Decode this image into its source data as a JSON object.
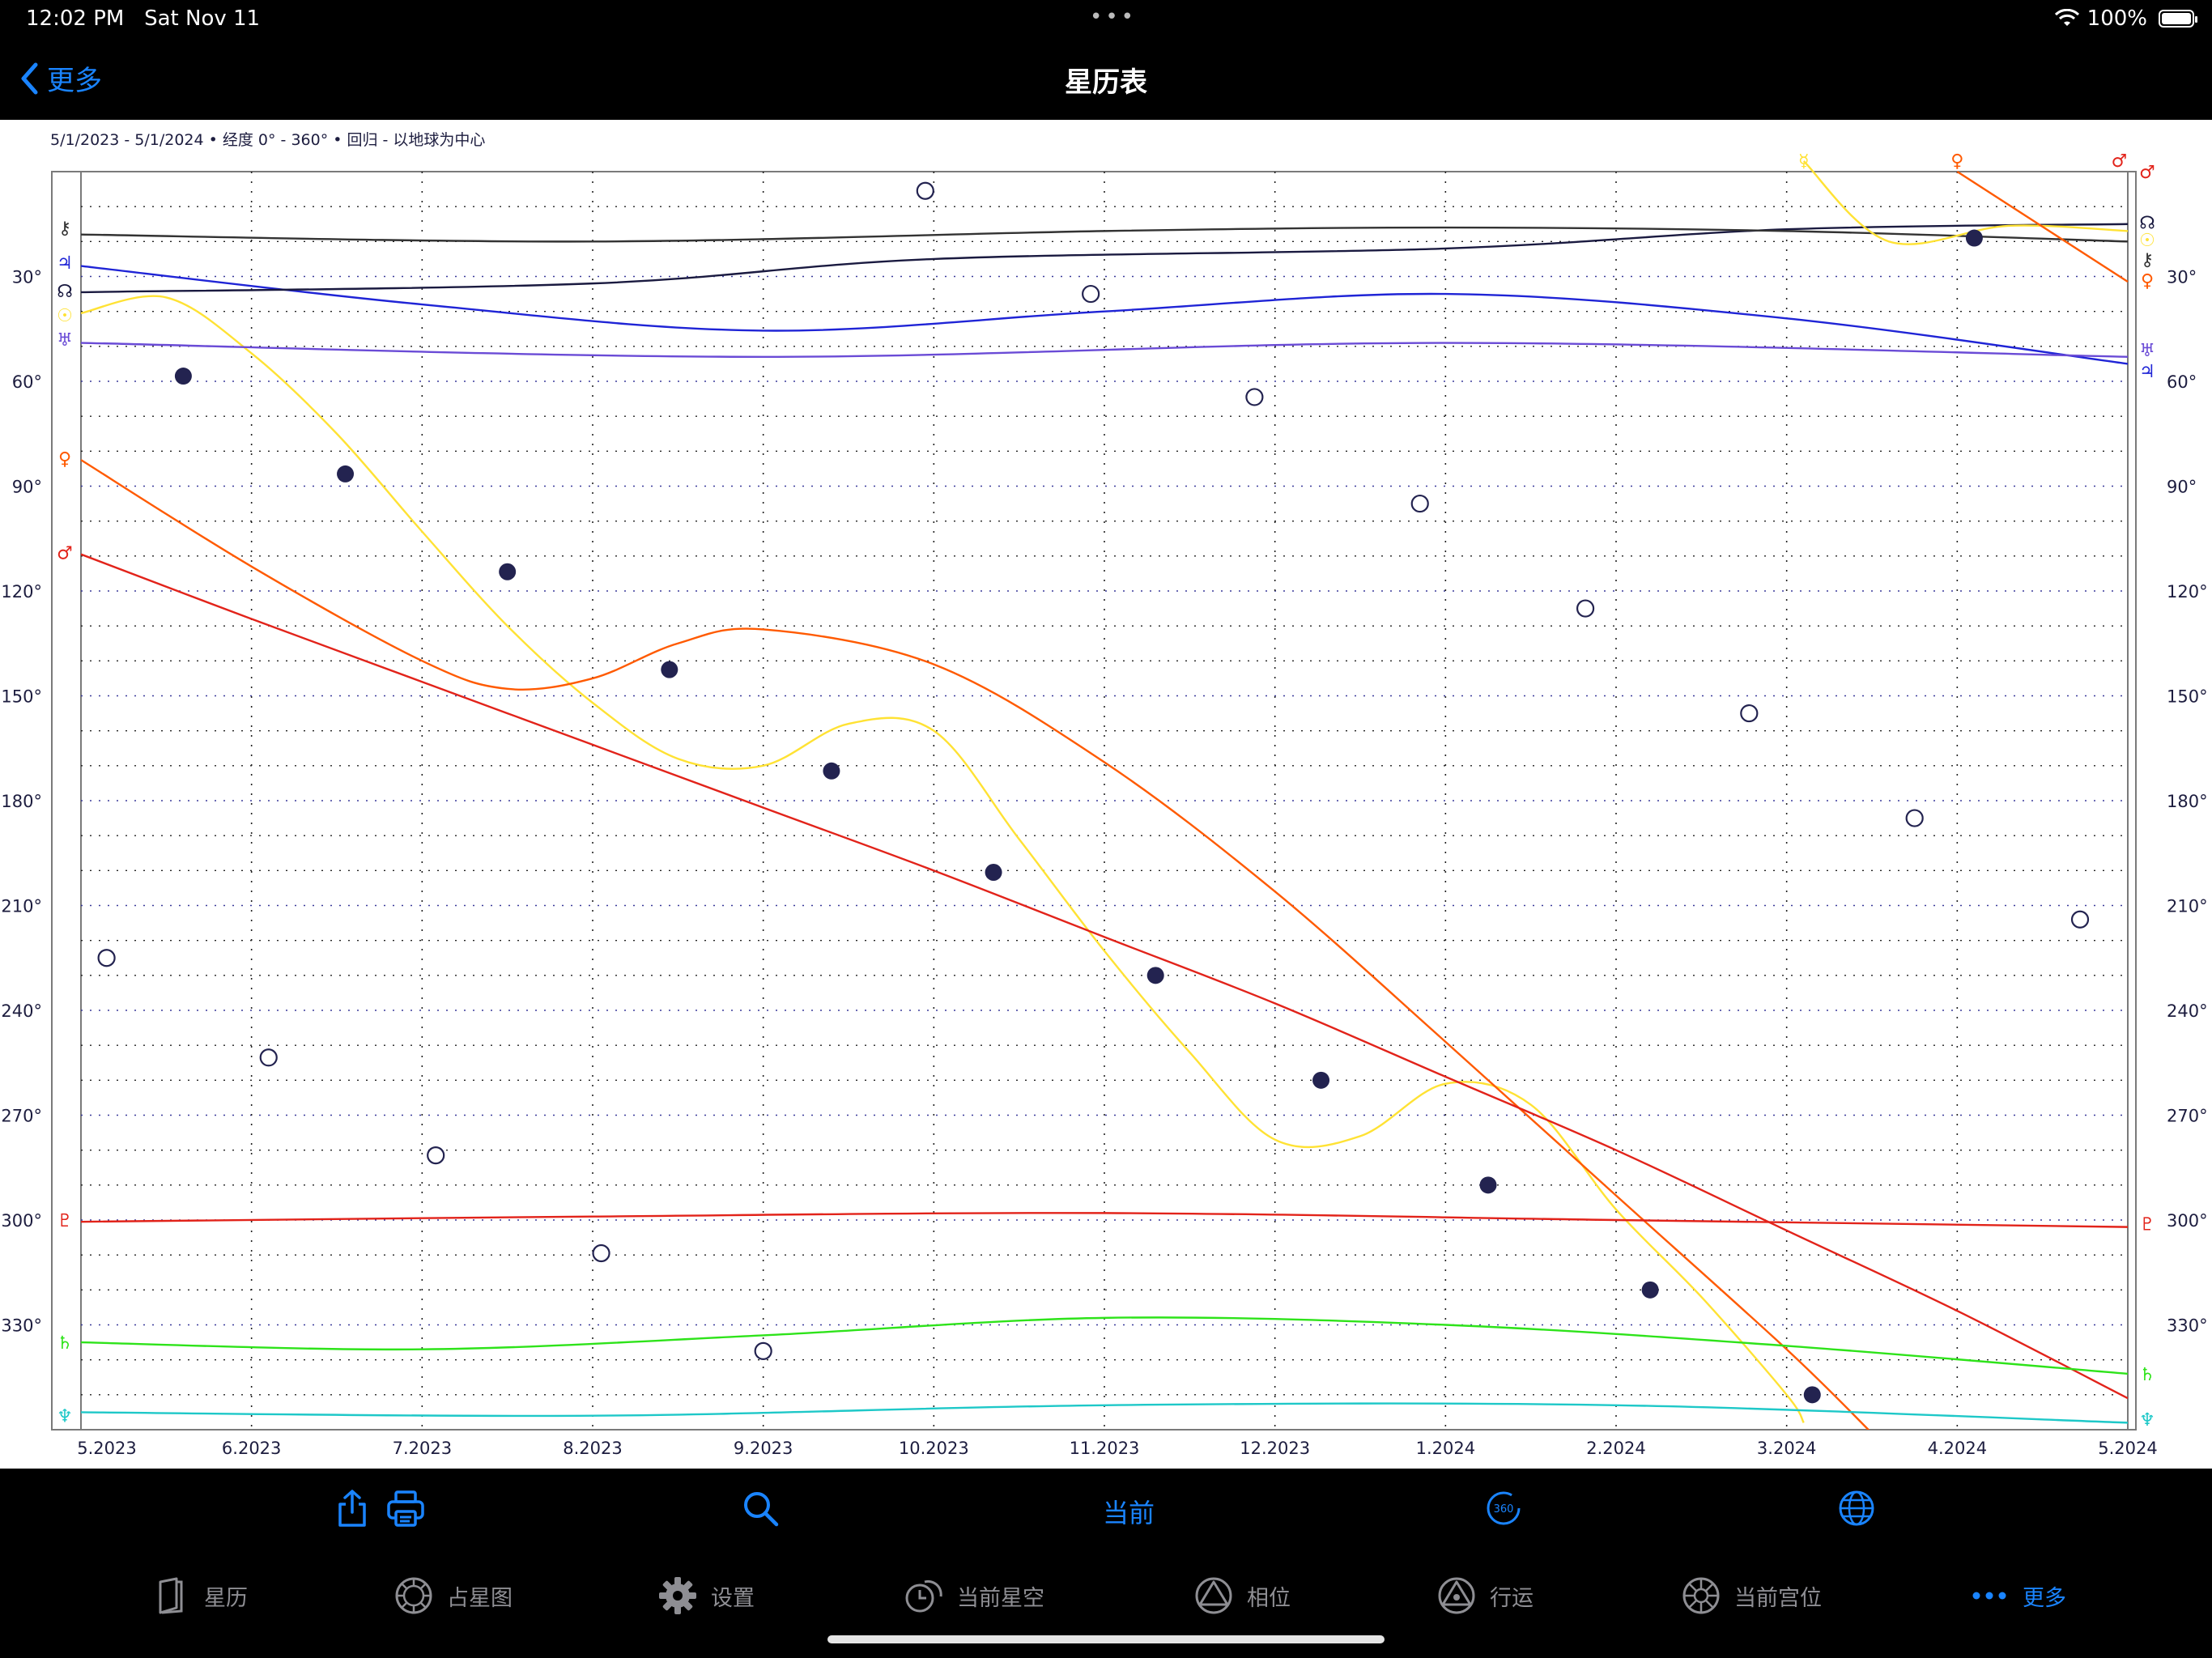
{
  "status_bar": {
    "time": "12:02 PM",
    "date": "Sat Nov 11",
    "battery": "100%"
  },
  "nav": {
    "back_label": "更多",
    "title": "星历表"
  },
  "chart_data": {
    "type": "line",
    "subtitle": "5/1/2023 - 5/1/2024 • 经度 0° - 360° • 回归 - 以地球为中心",
    "y_ticks": [
      "30°",
      "60°",
      "90°",
      "120°",
      "150°",
      "180°",
      "210°",
      "240°",
      "270°",
      "300°",
      "330°"
    ],
    "x_ticks": [
      "5.2023",
      "6.2023",
      "7.2023",
      "8.2023",
      "9.2023",
      "10.2023",
      "11.2023",
      "12.2023",
      "1.2024",
      "2.2024",
      "3.2024",
      "4.2024",
      "5.2024"
    ],
    "x_range_months": [
      0,
      12
    ],
    "y_range_degrees": [
      0,
      360
    ],
    "colors": {
      "sun": "#ffe234",
      "venus": "#ff5a00",
      "mars": "#e2231a",
      "pluto": "#e2231a",
      "saturn": "#2ee31a",
      "neptune": "#1ec8c8",
      "jupiter": "#1f24d6",
      "uranus": "#6a4bd6",
      "node": "#1a1a40",
      "chiron": "#333333",
      "moon": "#232350",
      "grid": "#000000"
    },
    "series": [
      {
        "symbol": "☉",
        "color_key": "sun",
        "points": [
          [
            0,
            40.5
          ],
          [
            0.5,
            36
          ],
          [
            1,
            52
          ],
          [
            1.5,
            75
          ],
          [
            2,
            103
          ],
          [
            2.5,
            130
          ],
          [
            3,
            152
          ],
          [
            3.5,
            168
          ],
          [
            4,
            170
          ],
          [
            4.5,
            158
          ],
          [
            5,
            160
          ],
          [
            5.5,
            191
          ],
          [
            6,
            223
          ],
          [
            6.5,
            252
          ],
          [
            7,
            277
          ],
          [
            7.5,
            276
          ],
          [
            8,
            261
          ],
          [
            8.5,
            267
          ],
          [
            9,
            297
          ],
          [
            9.5,
            322
          ],
          [
            10,
            350
          ],
          [
            10.1,
            358
          ]
        ]
      },
      {
        "symbol": "♀",
        "color_key": "venus",
        "points": [
          [
            0,
            82.5
          ],
          [
            1,
            113
          ],
          [
            2,
            140
          ],
          [
            2.5,
            148
          ],
          [
            3,
            145
          ],
          [
            3.5,
            135
          ],
          [
            4,
            131
          ],
          [
            5,
            141
          ],
          [
            6,
            169
          ],
          [
            7,
            206
          ],
          [
            8,
            249
          ],
          [
            9,
            293
          ],
          [
            10,
            337
          ],
          [
            10.5,
            361
          ]
        ]
      },
      {
        "symbol": "♂",
        "color_key": "mars",
        "points": [
          [
            0,
            109.5
          ],
          [
            1,
            128
          ],
          [
            2,
            146
          ],
          [
            3,
            164
          ],
          [
            4,
            182
          ],
          [
            5,
            200
          ],
          [
            6,
            219
          ],
          [
            7,
            238
          ],
          [
            8,
            259
          ],
          [
            9,
            280
          ],
          [
            10,
            303
          ],
          [
            11,
            326
          ],
          [
            12,
            351
          ]
        ]
      },
      {
        "symbol": "♇",
        "color_key": "pluto",
        "points": [
          [
            0,
            300.5
          ],
          [
            3,
            299
          ],
          [
            6,
            298
          ],
          [
            9,
            300
          ],
          [
            12,
            302
          ]
        ]
      },
      {
        "symbol": "♄",
        "color_key": "saturn",
        "points": [
          [
            0,
            335
          ],
          [
            2,
            337
          ],
          [
            4,
            333
          ],
          [
            6,
            328
          ],
          [
            8,
            330
          ],
          [
            10,
            336
          ],
          [
            12,
            344
          ]
        ]
      },
      {
        "symbol": "♆",
        "color_key": "neptune",
        "points": [
          [
            0,
            355
          ],
          [
            3,
            356
          ],
          [
            6,
            353
          ],
          [
            9,
            353
          ],
          [
            12,
            358
          ]
        ]
      },
      {
        "symbol": "♃",
        "color_key": "jupiter",
        "points": [
          [
            0,
            27
          ],
          [
            2,
            38
          ],
          [
            4,
            45.5
          ],
          [
            6,
            40
          ],
          [
            8,
            35
          ],
          [
            10,
            42
          ],
          [
            12,
            55
          ]
        ]
      },
      {
        "symbol": "♅",
        "color_key": "uranus",
        "points": [
          [
            0,
            49
          ],
          [
            4,
            53
          ],
          [
            8,
            49
          ],
          [
            12,
            53
          ]
        ]
      },
      {
        "symbol": "☊",
        "color_key": "node",
        "points": [
          [
            0,
            34.5
          ],
          [
            3,
            32
          ],
          [
            5,
            25
          ],
          [
            8,
            22
          ],
          [
            10,
            16.5
          ],
          [
            12,
            15
          ]
        ]
      },
      {
        "symbol": "⚷",
        "color_key": "chiron",
        "points": [
          [
            0,
            18
          ],
          [
            3,
            20
          ],
          [
            6,
            17
          ],
          [
            8,
            16
          ],
          [
            10,
            17
          ],
          [
            12,
            20
          ]
        ]
      }
    ],
    "top_entries": [
      {
        "symbol": "☿",
        "color_key": "sun",
        "points": [
          [
            10.1,
            -3
          ],
          [
            10.6,
            20
          ],
          [
            11.3,
            15.5
          ],
          [
            12,
            17
          ]
        ]
      },
      {
        "symbol": "♀",
        "color_key": "venus",
        "points": [
          [
            11,
            0
          ],
          [
            12,
            31.5
          ]
        ]
      }
    ],
    "moon_new": [
      [
        0.6,
        58.5
      ],
      [
        1.55,
        86.5
      ],
      [
        2.5,
        114.5
      ],
      [
        3.45,
        142.5
      ],
      [
        4.4,
        171.5
      ],
      [
        5.35,
        200.5
      ],
      [
        6.3,
        230
      ],
      [
        7.27,
        260
      ],
      [
        8.25,
        290
      ],
      [
        9.2,
        320
      ],
      [
        10.15,
        350
      ],
      [
        11.1,
        19
      ]
    ],
    "moon_full": [
      [
        0.15,
        225
      ],
      [
        1.1,
        253.5
      ],
      [
        2.08,
        281.5
      ],
      [
        3.05,
        309.5
      ],
      [
        4.0,
        337.5
      ],
      [
        4.95,
        5.5
      ],
      [
        5.92,
        35
      ],
      [
        6.88,
        64.5
      ],
      [
        7.85,
        95
      ],
      [
        8.82,
        125
      ],
      [
        9.78,
        155
      ],
      [
        10.75,
        185
      ],
      [
        11.72,
        214
      ]
    ],
    "left_markers": [
      {
        "symbol": "⚷",
        "y": 16,
        "color_key": "chiron"
      },
      {
        "symbol": "♃",
        "y": 26,
        "color_key": "jupiter"
      },
      {
        "symbol": "☊",
        "y": 34,
        "color_key": "node"
      },
      {
        "symbol": "☉",
        "y": 41,
        "color_key": "sun"
      },
      {
        "symbol": "♅",
        "y": 48,
        "color_key": "uranus"
      },
      {
        "symbol": "♀",
        "y": 82,
        "color_key": "venus"
      },
      {
        "symbol": "♂",
        "y": 109,
        "color_key": "mars"
      },
      {
        "symbol": "♇",
        "y": 300,
        "color_key": "pluto"
      },
      {
        "symbol": "♄",
        "y": 335,
        "color_key": "saturn"
      },
      {
        "symbol": "♆",
        "y": 356,
        "color_key": "neptune"
      }
    ],
    "right_markers": [
      {
        "symbol": "♂",
        "y": 0,
        "color_key": "mars"
      },
      {
        "symbol": "☊",
        "y": 14.5,
        "color_key": "node"
      },
      {
        "symbol": "☉",
        "y": 19.5,
        "color_key": "sun"
      },
      {
        "symbol": "⚷",
        "y": 25,
        "color_key": "chiron"
      },
      {
        "symbol": "♀",
        "y": 31,
        "color_key": "venus"
      },
      {
        "symbol": "♅",
        "y": 51,
        "color_key": "uranus"
      },
      {
        "symbol": "♃",
        "y": 57,
        "color_key": "jupiter"
      },
      {
        "symbol": "♇",
        "y": 301,
        "color_key": "pluto"
      },
      {
        "symbol": "♄",
        "y": 344,
        "color_key": "saturn"
      },
      {
        "symbol": "♆",
        "y": 357,
        "color_key": "neptune"
      }
    ],
    "top_markers": [
      {
        "symbol": "☿",
        "x": 10.1,
        "color_key": "sun"
      },
      {
        "symbol": "♀",
        "x": 11.0,
        "color_key": "venus"
      },
      {
        "symbol": "♂",
        "x": 11.95,
        "color_key": "mars"
      }
    ]
  },
  "toolbar": {
    "share": "share-icon",
    "print": "print-icon",
    "search": "search-icon",
    "current_label": "当前",
    "rotate_badge": "360",
    "globe": "globe-icon"
  },
  "tabs": [
    {
      "label": "星历",
      "icon": "book-icon"
    },
    {
      "label": "占星图",
      "icon": "chart-wheel-icon"
    },
    {
      "label": "设置",
      "icon": "gear-icon"
    },
    {
      "label": "当前星空",
      "icon": "clock-sky-icon"
    },
    {
      "label": "相位",
      "icon": "triangle-circle-icon"
    },
    {
      "label": "行运",
      "icon": "triangle-transit-icon"
    },
    {
      "label": "当前宫位",
      "icon": "houses-wheel-icon"
    },
    {
      "label": "更多",
      "icon": "more-icon"
    }
  ]
}
